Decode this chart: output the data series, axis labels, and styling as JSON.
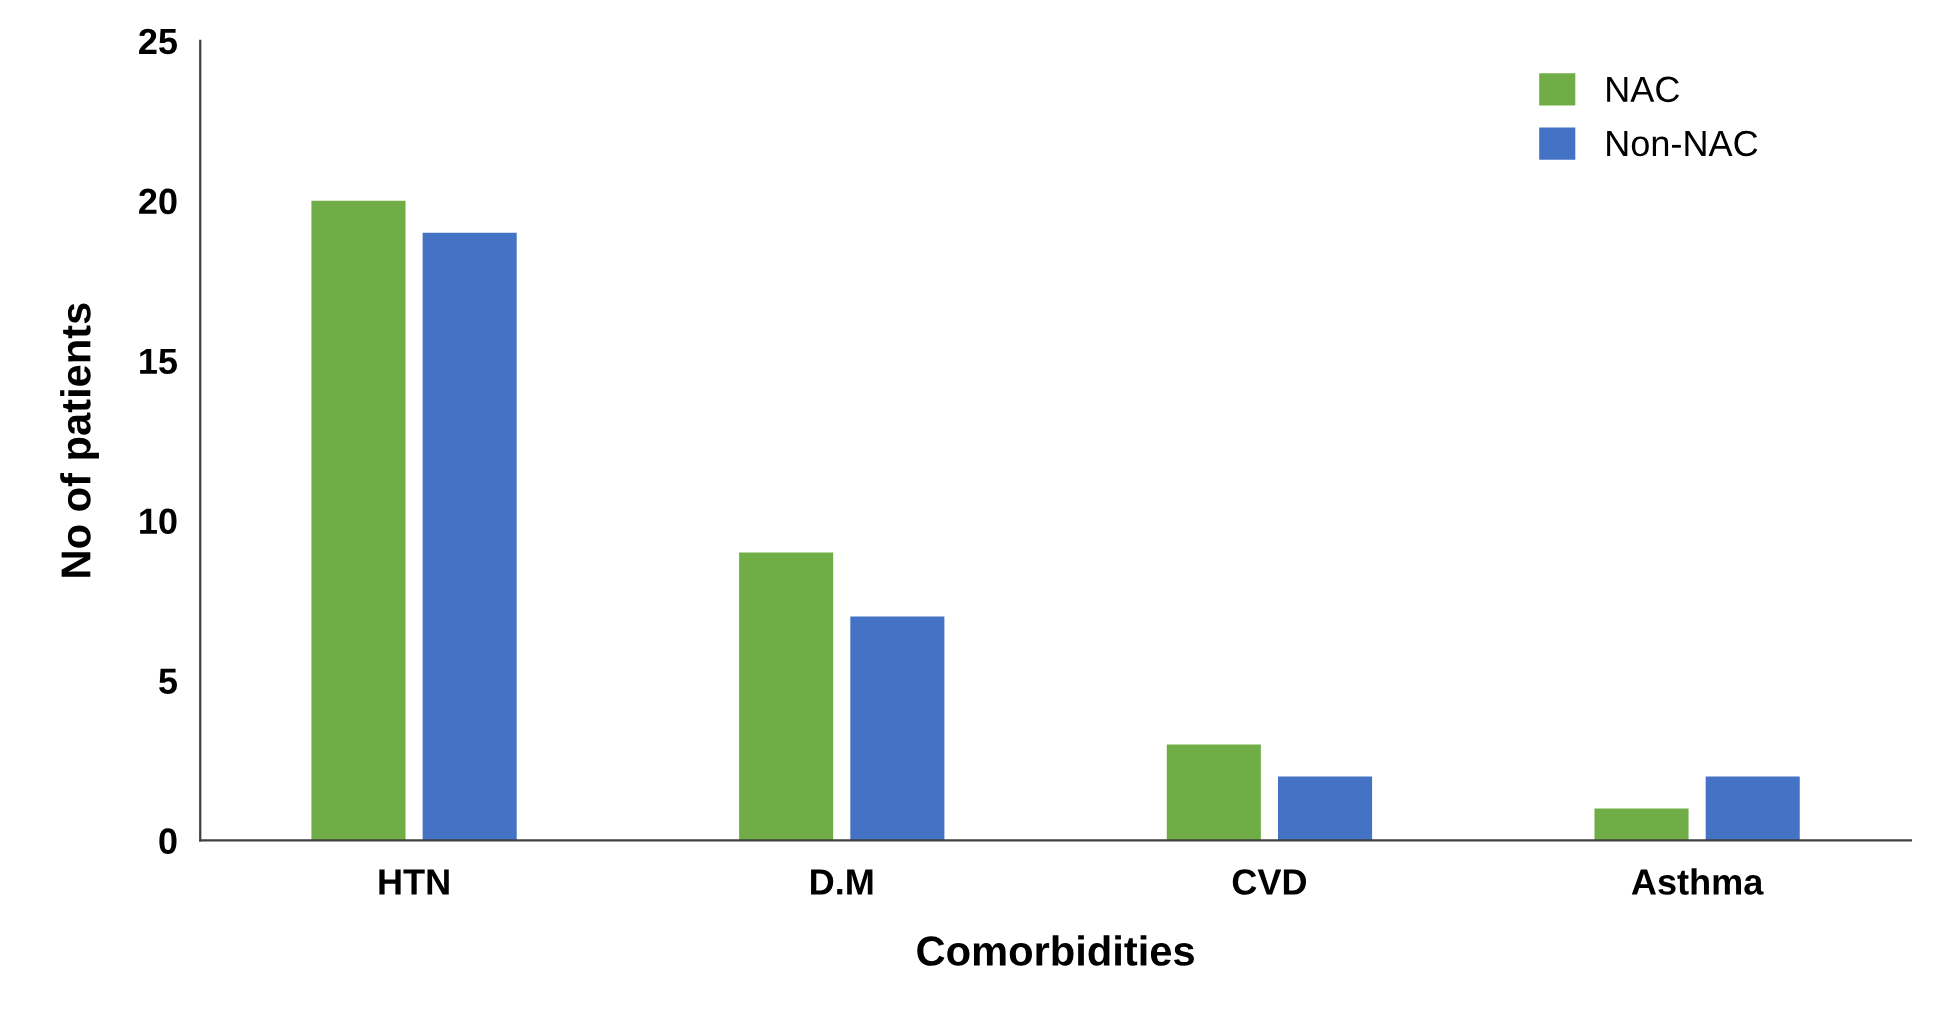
{
  "chart_data": {
    "type": "bar",
    "xlabel": "Comorbidities",
    "ylabel": "No of patients",
    "categories": [
      "HTN",
      "D.M",
      "CVD",
      "Asthma"
    ],
    "series": [
      {
        "name": "NAC",
        "color": "#70ad47",
        "values": [
          20,
          9,
          3,
          1
        ]
      },
      {
        "name": "Non-NAC",
        "color": "#4472c4",
        "values": [
          19,
          7,
          2,
          2
        ]
      }
    ],
    "ylim": [
      0,
      25
    ],
    "yticks": [
      0,
      5,
      10,
      15,
      20,
      25
    ],
    "grid": false,
    "legend": "top right"
  }
}
